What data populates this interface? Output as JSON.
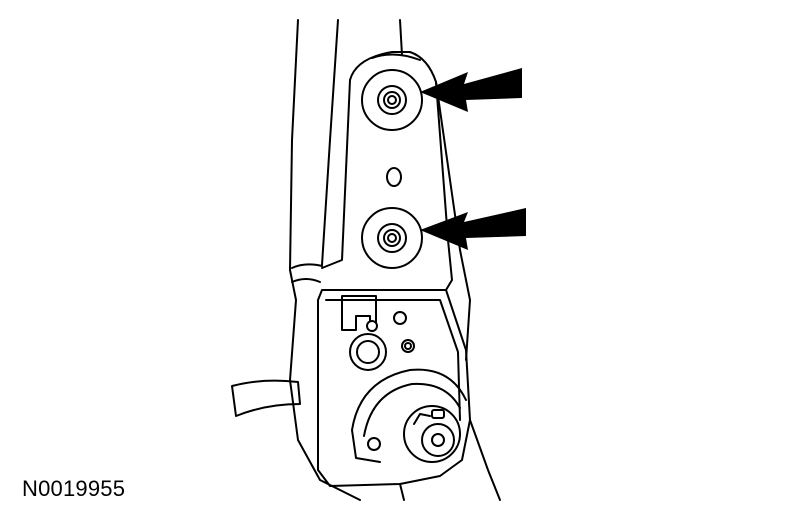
{
  "figure": {
    "reference_number": "N0019955",
    "callouts": [
      {
        "target": "upper-bolt",
        "icon": "arrow-icon"
      },
      {
        "target": "lower-bolt",
        "icon": "arrow-icon"
      }
    ],
    "colors": {
      "line": "#000000",
      "background": "#ffffff"
    }
  }
}
